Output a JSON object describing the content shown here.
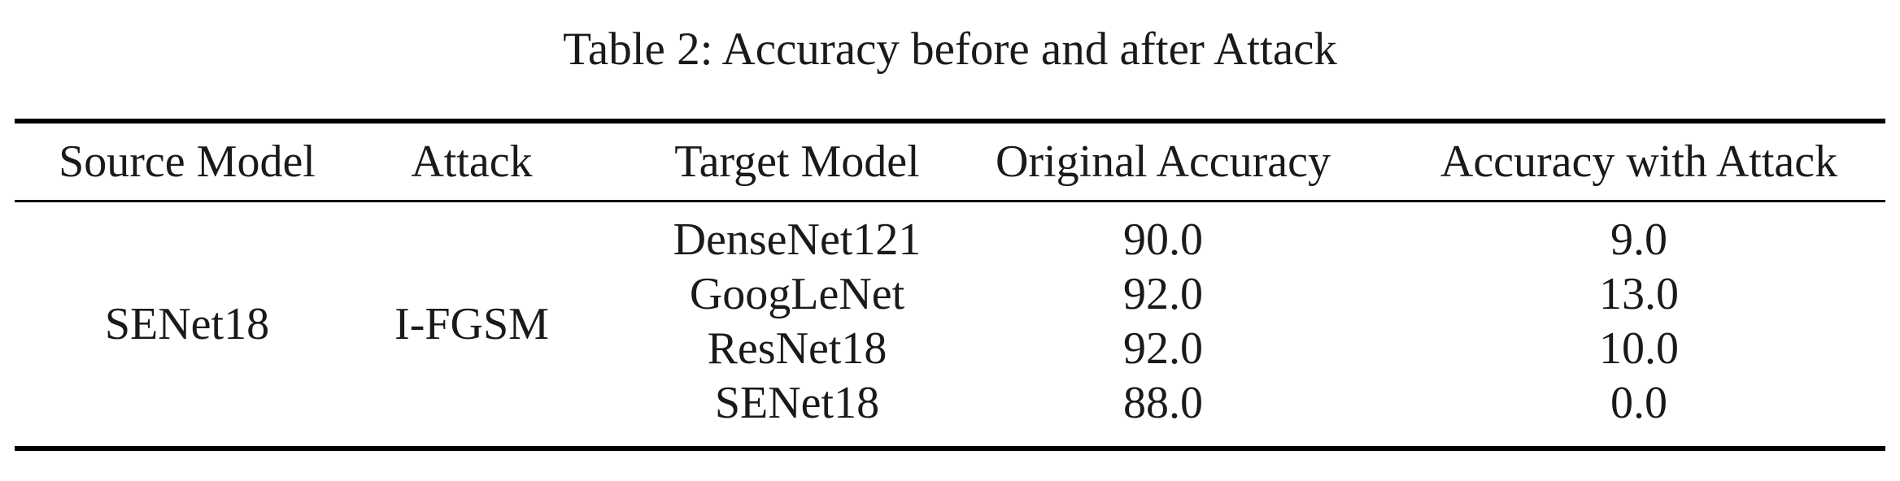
{
  "caption": "Table 2: Accuracy before and after Attack",
  "table": {
    "headers": [
      "Source Model",
      "Attack",
      "Target Model",
      "Original Accuracy",
      "Accuracy with Attack"
    ],
    "source_model": "SENet18",
    "attack": "I-FGSM",
    "rows": [
      {
        "target_model": "DenseNet121",
        "original_accuracy": "90.0",
        "accuracy_with_attack": "9.0"
      },
      {
        "target_model": "GoogLeNet",
        "original_accuracy": "92.0",
        "accuracy_with_attack": "13.0"
      },
      {
        "target_model": "ResNet18",
        "original_accuracy": "92.0",
        "accuracy_with_attack": "10.0"
      },
      {
        "target_model": "SENet18",
        "original_accuracy": "88.0",
        "accuracy_with_attack": "0.0"
      }
    ]
  }
}
